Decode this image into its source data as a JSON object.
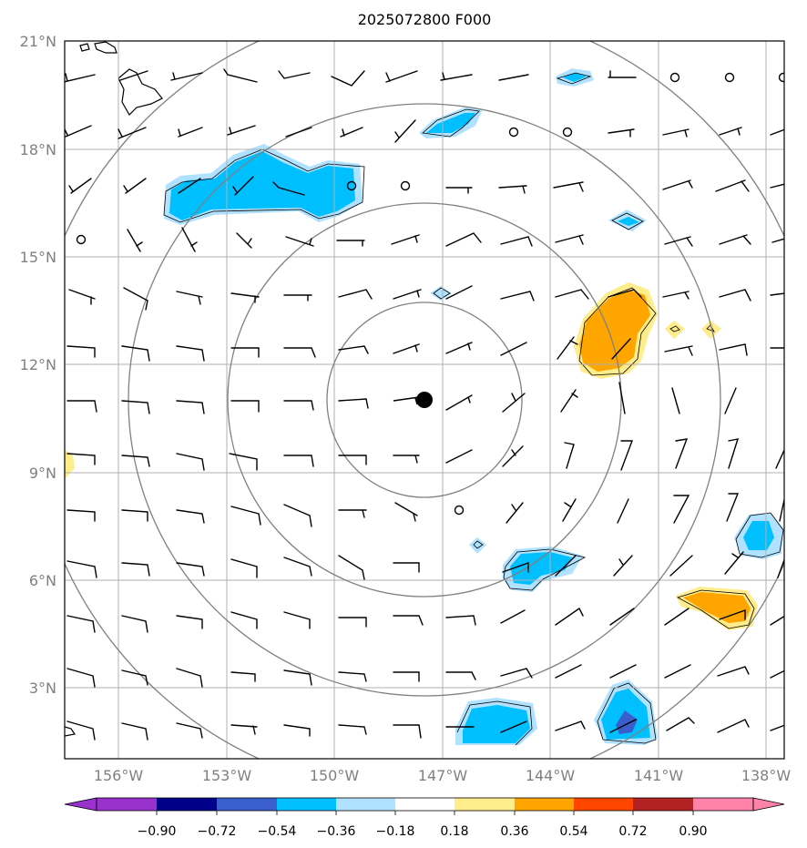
{
  "title": "2025072800 F000",
  "lat_labels": [
    "21°N",
    "18°N",
    "15°N",
    "12°N",
    "9°N",
    "6°N",
    "3°N"
  ],
  "lon_labels": [
    "156°W",
    "153°W",
    "150°W",
    "147°W",
    "144°W",
    "141°W",
    "138°W"
  ],
  "colorbar": {
    "tick_labels": [
      "−0.90",
      "−0.72",
      "−0.54",
      "−0.36",
      "−0.18",
      "0.18",
      "0.36",
      "0.54",
      "0.72",
      "0.90"
    ],
    "colors": [
      "#9932cc",
      "#00008b",
      "#3a5fcd",
      "#00bfff",
      "#b0e2ff",
      "#ffffff",
      "#ffec8b",
      "#ffa500",
      "#ff4500",
      "#b22222",
      "#ff82ab"
    ]
  },
  "map": {
    "extent": {
      "lon_min": -157.5,
      "lon_max": -137.5,
      "lat_min": 1.0,
      "lat_max": 21.0
    },
    "storm_center": {
      "lon": -147.5,
      "lat": 11.0
    },
    "range_rings_deg": [
      2.7,
      5.4,
      8.1,
      10.8
    ],
    "contour_color": "#808080",
    "grid_color": "#b0b0b0"
  }
}
